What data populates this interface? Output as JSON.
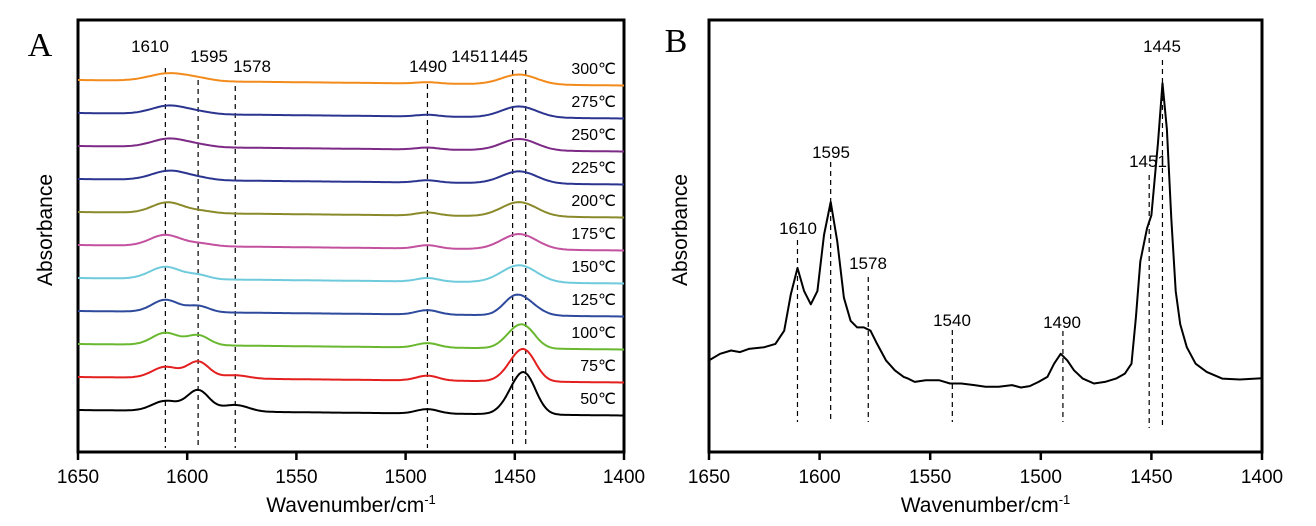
{
  "chart_data": [
    {
      "panel": "A",
      "type": "line",
      "xlabel": "Wavenumber/cm",
      "xlabel_superscript": "-1",
      "ylabel": "Absorbance",
      "xlim": [
        1650,
        1400
      ],
      "x_ticks": [
        1650,
        1600,
        1550,
        1500,
        1450,
        1400
      ],
      "y_ticks": [],
      "grid": false,
      "legend": "inline labels at right end of each trace",
      "stacked_offset": true,
      "reference_lines": [
        1610,
        1595,
        1578,
        1490,
        1451,
        1445
      ],
      "annotations": [
        "1610",
        "1595",
        "1578",
        "1490",
        "1451",
        "1445"
      ],
      "series": [
        {
          "name": "300℃",
          "color": "#f28b1c",
          "baseline": 0.0,
          "slope": -0.002,
          "peaks": [
            [
              1608,
              0.35,
              9
            ],
            [
              1594,
              0.08,
              6
            ],
            [
              1490,
              0.06,
              5
            ],
            [
              1448,
              0.45,
              8
            ]
          ]
        },
        {
          "name": "275℃",
          "color": "#2b3590",
          "baseline": 0.0,
          "slope": -0.002,
          "peaks": [
            [
              1608,
              0.38,
              8
            ],
            [
              1594,
              0.08,
              6
            ],
            [
              1490,
              0.08,
              5
            ],
            [
              1448,
              0.5,
              8
            ]
          ]
        },
        {
          "name": "250℃",
          "color": "#7d2a86",
          "baseline": 0.0,
          "slope": -0.002,
          "peaks": [
            [
              1608,
              0.38,
              8
            ],
            [
              1594,
              0.08,
              6
            ],
            [
              1490,
              0.09,
              5
            ],
            [
              1448,
              0.52,
              8
            ]
          ]
        },
        {
          "name": "225℃",
          "color": "#2b3590",
          "baseline": 0.0,
          "slope": -0.002,
          "peaks": [
            [
              1608,
              0.42,
              8
            ],
            [
              1594,
              0.08,
              6
            ],
            [
              1490,
              0.1,
              5
            ],
            [
              1448,
              0.55,
              8
            ]
          ]
        },
        {
          "name": "200℃",
          "color": "#8b8a2a",
          "baseline": 0.0,
          "slope": -0.002,
          "peaks": [
            [
              1609,
              0.48,
              7
            ],
            [
              1594,
              0.1,
              6
            ],
            [
              1490,
              0.14,
              5
            ],
            [
              1448,
              0.65,
              8
            ]
          ]
        },
        {
          "name": "175℃",
          "color": "#c3519f",
          "baseline": 0.0,
          "slope": -0.002,
          "peaks": [
            [
              1610,
              0.5,
              7
            ],
            [
              1594,
              0.12,
              6
            ],
            [
              1490,
              0.15,
              5
            ],
            [
              1448,
              0.7,
              8
            ]
          ]
        },
        {
          "name": "150℃",
          "color": "#6fcbdc",
          "baseline": 0.0,
          "slope": -0.002,
          "peaks": [
            [
              1610,
              0.55,
              7
            ],
            [
              1595,
              0.18,
              5
            ],
            [
              1490,
              0.16,
              5
            ],
            [
              1448,
              0.78,
              8
            ]
          ]
        },
        {
          "name": "125℃",
          "color": "#2e4a9c",
          "baseline": 0.0,
          "slope": -0.002,
          "peaks": [
            [
              1610,
              0.55,
              6
            ],
            [
              1595,
              0.28,
              5
            ],
            [
              1490,
              0.2,
              5
            ],
            [
              1451,
              0.55,
              5
            ],
            [
              1445,
              0.55,
              6
            ]
          ]
        },
        {
          "name": "100℃",
          "color": "#69b830",
          "baseline": 0.0,
          "slope": -0.002,
          "peaks": [
            [
              1610,
              0.55,
              6
            ],
            [
              1595,
              0.45,
              5
            ],
            [
              1490,
              0.2,
              5
            ],
            [
              1451,
              0.5,
              5
            ],
            [
              1445,
              0.8,
              5
            ]
          ]
        },
        {
          "name": "75℃",
          "color": "#e3201f",
          "baseline": 0.0,
          "slope": -0.002,
          "peaks": [
            [
              1610,
              0.5,
              6
            ],
            [
              1595,
              0.75,
              5
            ],
            [
              1578,
              0.15,
              6
            ],
            [
              1490,
              0.22,
              5
            ],
            [
              1451,
              0.5,
              5
            ],
            [
              1445,
              1.2,
              5
            ]
          ]
        },
        {
          "name": "50℃",
          "color": "#000000",
          "baseline": 0.0,
          "slope": -0.002,
          "peaks": [
            [
              1610,
              0.45,
              6
            ],
            [
              1595,
              0.95,
              5
            ],
            [
              1578,
              0.3,
              6
            ],
            [
              1490,
              0.2,
              5
            ],
            [
              1451,
              0.6,
              5
            ],
            [
              1445,
              1.6,
              5
            ]
          ]
        }
      ]
    },
    {
      "panel": "B",
      "type": "line",
      "xlabel": "Wavenumber/cm",
      "xlabel_superscript": "-1",
      "ylabel": "Absorbance",
      "xlim": [
        1650,
        1400
      ],
      "x_ticks": [
        1650,
        1600,
        1550,
        1500,
        1450,
        1400
      ],
      "y_ticks": [],
      "grid": false,
      "legend": "none",
      "reference_lines": [
        1610,
        1595,
        1578,
        1540,
        1490,
        1451,
        1445
      ],
      "annotations": [
        "1610",
        "1595",
        "1578",
        "1540",
        "1490",
        "1451",
        "1445"
      ],
      "series": [
        {
          "name": "spectrum",
          "color": "#000000",
          "points": [
            [
              1650,
              0.12
            ],
            [
              1645,
              0.14
            ],
            [
              1640,
              0.15
            ],
            [
              1636,
              0.145
            ],
            [
              1632,
              0.155
            ],
            [
              1625,
              0.16
            ],
            [
              1620,
              0.17
            ],
            [
              1616,
              0.21
            ],
            [
              1613,
              0.32
            ],
            [
              1610,
              0.4
            ],
            [
              1607,
              0.33
            ],
            [
              1604,
              0.29
            ],
            [
              1601,
              0.33
            ],
            [
              1598,
              0.5
            ],
            [
              1595,
              0.6
            ],
            [
              1592,
              0.48
            ],
            [
              1589,
              0.31
            ],
            [
              1586,
              0.24
            ],
            [
              1583,
              0.22
            ],
            [
              1580,
              0.22
            ],
            [
              1577,
              0.21
            ],
            [
              1574,
              0.17
            ],
            [
              1570,
              0.12
            ],
            [
              1566,
              0.09
            ],
            [
              1562,
              0.07
            ],
            [
              1560,
              0.065
            ],
            [
              1557,
              0.055
            ],
            [
              1552,
              0.06
            ],
            [
              1546,
              0.06
            ],
            [
              1541,
              0.05
            ],
            [
              1536,
              0.05
            ],
            [
              1530,
              0.045
            ],
            [
              1525,
              0.04
            ],
            [
              1519,
              0.04
            ],
            [
              1513,
              0.045
            ],
            [
              1509,
              0.038
            ],
            [
              1505,
              0.042
            ],
            [
              1501,
              0.055
            ],
            [
              1497,
              0.07
            ],
            [
              1494,
              0.11
            ],
            [
              1491,
              0.14
            ],
            [
              1488,
              0.12
            ],
            [
              1485,
              0.09
            ],
            [
              1481,
              0.065
            ],
            [
              1476,
              0.05
            ],
            [
              1471,
              0.055
            ],
            [
              1466,
              0.065
            ],
            [
              1462,
              0.08
            ],
            [
              1459,
              0.11
            ],
            [
              1457,
              0.25
            ],
            [
              1455,
              0.42
            ],
            [
              1452,
              0.52
            ],
            [
              1450,
              0.56
            ],
            [
              1447,
              0.78
            ],
            [
              1445,
              0.96
            ],
            [
              1443,
              0.82
            ],
            [
              1441,
              0.55
            ],
            [
              1439,
              0.33
            ],
            [
              1437,
              0.23
            ],
            [
              1434,
              0.16
            ],
            [
              1430,
              0.11
            ],
            [
              1425,
              0.085
            ],
            [
              1418,
              0.065
            ],
            [
              1410,
              0.062
            ],
            [
              1400,
              0.066
            ]
          ]
        }
      ]
    }
  ],
  "panels": {
    "A": {
      "letter": "A"
    },
    "B": {
      "letter": "B"
    }
  }
}
